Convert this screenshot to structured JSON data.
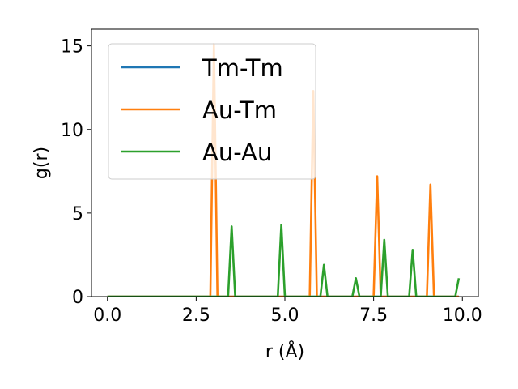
{
  "chart_data": {
    "type": "line",
    "xlabel": "r (Å)",
    "ylabel": "g(r)",
    "xlim": [
      -0.45,
      10.45
    ],
    "ylim": [
      0,
      16
    ],
    "xticks": [
      0.0,
      2.5,
      5.0,
      7.5,
      10.0
    ],
    "xtick_labels": [
      "0.0",
      "2.5",
      "5.0",
      "7.5",
      "10.0"
    ],
    "yticks": [
      0,
      5,
      10,
      15
    ],
    "ytick_labels": [
      "0",
      "5",
      "10",
      "15"
    ],
    "grid": false,
    "legend_position": "top-left",
    "series": [
      {
        "name": "Tm-Tm",
        "color": "#1f77b4",
        "x": [
          0.0,
          9.9
        ],
        "y": [
          0,
          0
        ]
      },
      {
        "name": "Au-Tm",
        "color": "#ff7f0e",
        "x": [
          0.0,
          2.9,
          3.0,
          3.1,
          5.7,
          5.8,
          5.9,
          7.5,
          7.6,
          7.7,
          9.0,
          9.1,
          9.2,
          9.9
        ],
        "y": [
          0,
          0,
          15.1,
          0,
          0,
          12.3,
          0,
          0,
          7.2,
          0,
          0,
          6.7,
          0,
          0
        ]
      },
      {
        "name": "Au-Au",
        "color": "#2ca02c",
        "x": [
          0.0,
          3.4,
          3.5,
          3.6,
          4.8,
          4.9,
          5.0,
          6.0,
          6.1,
          6.2,
          6.9,
          7.0,
          7.1,
          7.7,
          7.8,
          7.9,
          8.5,
          8.6,
          8.7,
          9.8,
          9.9
        ],
        "y": [
          0,
          0,
          4.2,
          0,
          0,
          4.3,
          0,
          0,
          1.9,
          0,
          0,
          1.1,
          0,
          0,
          3.4,
          0,
          0,
          2.8,
          0,
          0,
          1.1
        ]
      }
    ]
  }
}
